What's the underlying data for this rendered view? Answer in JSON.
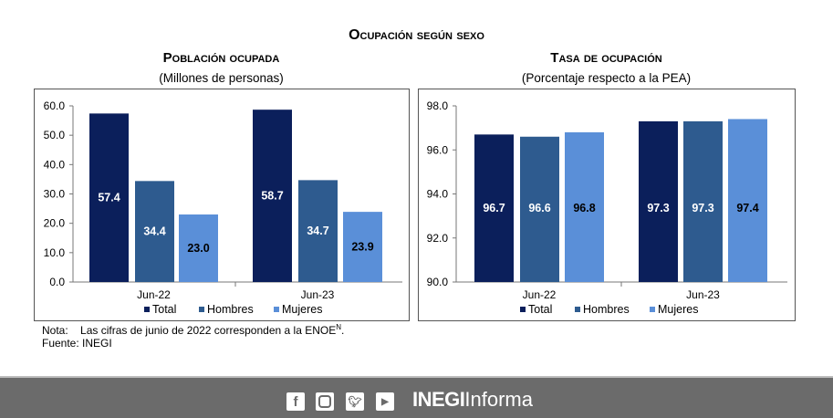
{
  "main_title": "Ocupación según sexo",
  "note_label": "Nota:",
  "note_text": "Las cifras de junio de 2022 corresponden a la ENOE",
  "note_sup": "N",
  "note_end": ".",
  "source": "Fuente: INEGI",
  "footer": {
    "brand_bold": "INEGI",
    "brand_light": "Informa",
    "icons": [
      "facebook-icon",
      "instagram-icon",
      "twitter-icon",
      "youtube-icon"
    ]
  },
  "colors": {
    "Total": "#0b1f5b",
    "Hombres": "#2e5b8f",
    "Mujeres": "#5a8fd8"
  },
  "chart_data": [
    {
      "type": "bar",
      "title": "Población ocupada",
      "subtitle": "(Millones de personas)",
      "categories": [
        "Jun-22",
        "Jun-23"
      ],
      "series": [
        {
          "name": "Total",
          "values": [
            57.4,
            58.7
          ]
        },
        {
          "name": "Hombres",
          "values": [
            34.4,
            34.7
          ]
        },
        {
          "name": "Mujeres",
          "values": [
            23.0,
            23.9
          ]
        }
      ],
      "ylim": [
        0,
        60
      ],
      "yticks": [
        "0.0",
        "10.0",
        "20.0",
        "30.0",
        "40.0",
        "50.0",
        "60.0"
      ],
      "legend": "bottom"
    },
    {
      "type": "bar",
      "title": "Tasa de ocupación",
      "subtitle": "(Porcentaje respecto a la PEA)",
      "categories": [
        "Jun-22",
        "Jun-23"
      ],
      "series": [
        {
          "name": "Total",
          "values": [
            96.7,
            97.3
          ]
        },
        {
          "name": "Hombres",
          "values": [
            96.6,
            97.3
          ]
        },
        {
          "name": "Mujeres",
          "values": [
            96.8,
            97.4
          ]
        }
      ],
      "ylim": [
        90,
        98
      ],
      "yticks": [
        "90.0",
        "92.0",
        "94.0",
        "96.0",
        "98.0"
      ],
      "legend": "bottom"
    }
  ]
}
